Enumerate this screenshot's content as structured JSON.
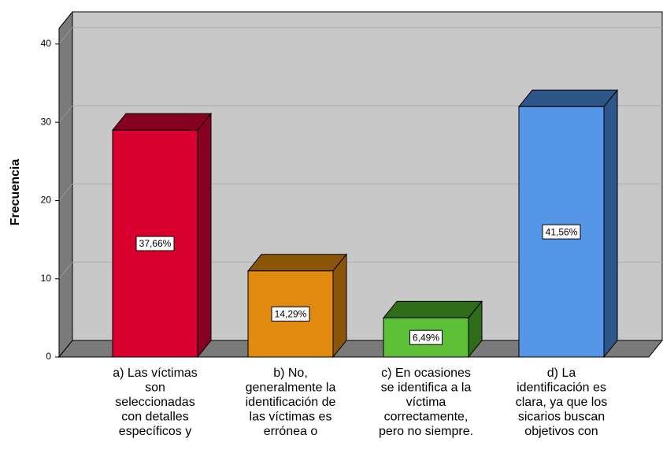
{
  "chart_data": {
    "type": "bar3d",
    "y_axis_label": "Frecuencia",
    "categories": [
      [
        "a) Las víctimas",
        "son",
        "seleccionadas",
        "con detalles",
        "específicos y"
      ],
      [
        "b) No,",
        "generalmente la",
        "identificación de",
        "las víctimas es",
        "errónea o"
      ],
      [
        "c) En ocasiones",
        "se identifica a la",
        "víctima",
        "correctamente,",
        "pero no siempre."
      ],
      [
        "d) La",
        "identificación es",
        "clara, ya que los",
        "sicarios buscan",
        "objetivos con"
      ]
    ],
    "values": [
      29,
      11,
      5,
      32
    ],
    "percentages": [
      37.66,
      14.29,
      6.49,
      41.56
    ],
    "percentage_labels": [
      "37,66%",
      "14,29%",
      "6,49%",
      "41,56%"
    ],
    "colors": [
      {
        "front": "#d7002f",
        "dark": "#870022"
      },
      {
        "front": "#e08a0f",
        "dark": "#8a5409"
      },
      {
        "front": "#5dc036",
        "dark": "#2f6d1b"
      },
      {
        "front": "#5596e6",
        "dark": "#2f5688"
      }
    ],
    "ylim": [
      0,
      42
    ],
    "yticks": [
      0,
      10,
      20,
      30,
      40
    ],
    "grid": true
  }
}
